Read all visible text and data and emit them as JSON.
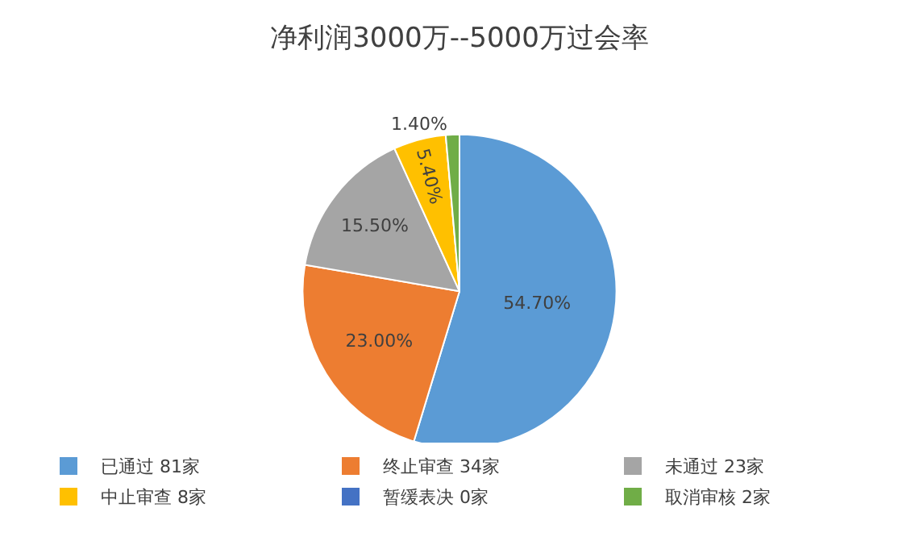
{
  "chart_data": {
    "type": "pie",
    "title": "净利润3000万--5000万过会率",
    "categories": [
      "已通过 81家",
      "终止审查 34家",
      "未通过 23家",
      "中止审查 8家",
      "暂缓表决 0家",
      "取消审核 2家"
    ],
    "values": [
      54.7,
      23.0,
      15.5,
      5.4,
      0,
      1.4
    ],
    "value_labels": [
      "54.70%",
      "23.00%",
      "15.50%",
      "5.40%",
      null,
      "1.40%"
    ],
    "colors": [
      "#5b9bd5",
      "#ed7d31",
      "#a5a5a5",
      "#ffc000",
      "#4472c4",
      "#70ad47"
    ],
    "legend": "bottom"
  }
}
